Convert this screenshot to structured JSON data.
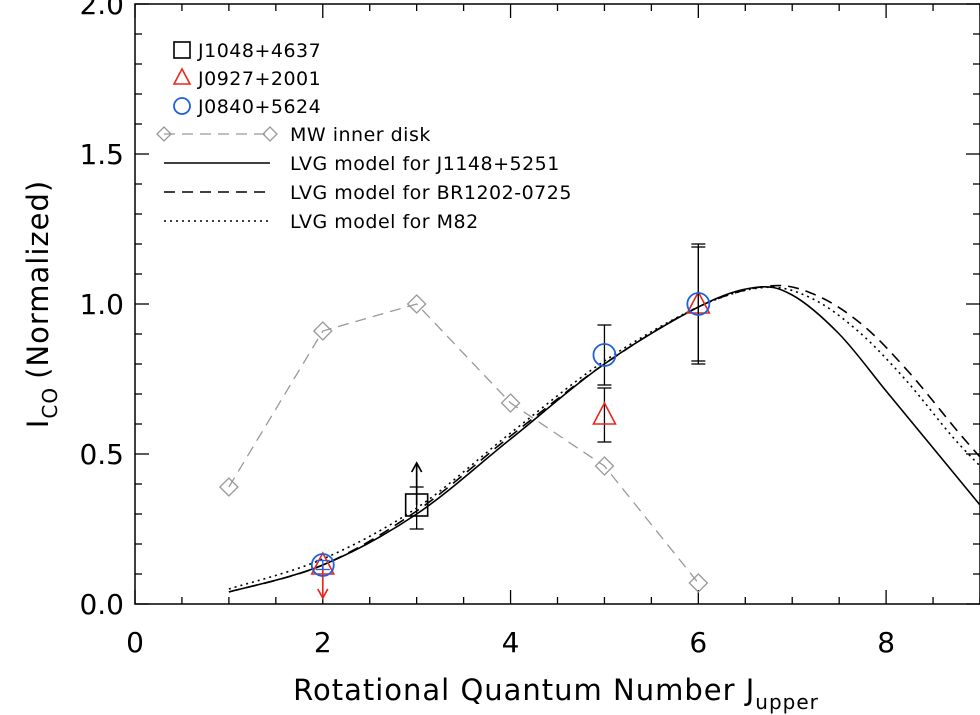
{
  "chart_data": {
    "type": "scatter",
    "title": "",
    "xlabel": "Rotational Quantum Number J",
    "xlabel_subscript": "upper",
    "ylabel": "I",
    "ylabel_subscript": "CO",
    "ylabel_suffix": "(Normalized)",
    "xlim": [
      0,
      9
    ],
    "ylim": [
      0,
      2.0
    ],
    "x_ticks": [
      0,
      2,
      4,
      6,
      8
    ],
    "y_ticks": [
      "0.0",
      "0.5",
      "1.0",
      "1.5",
      "2.0"
    ],
    "x_minor_step": 0.5,
    "y_minor_step": 0.1,
    "grid": false,
    "legend_position": "top-left",
    "series": [
      {
        "name": "J1048+4637",
        "marker": "square",
        "color": "#000000",
        "points": [
          {
            "x": 3,
            "y": 0.33,
            "err_lo": 0.08,
            "err_hi": 0.06,
            "lower_limit": true
          }
        ]
      },
      {
        "name": "J0927+2001",
        "marker": "triangle",
        "color": "#e8281c",
        "points": [
          {
            "x": 2,
            "y": 0.13,
            "upper_limit": true
          },
          {
            "x": 5,
            "y": 0.63,
            "err_lo": 0.09,
            "err_hi": 0.09
          },
          {
            "x": 6,
            "y": 1.0,
            "err_lo": 0.2,
            "err_hi": 0.2
          }
        ]
      },
      {
        "name": "J0840+5624",
        "marker": "circle",
        "color": "#1f5fe0",
        "points": [
          {
            "x": 2,
            "y": 0.13,
            "err_lo": 0.015,
            "err_hi": 0.015
          },
          {
            "x": 5,
            "y": 0.83,
            "err_lo": 0.1,
            "err_hi": 0.1
          },
          {
            "x": 6,
            "y": 1.0,
            "err_lo": 0.19,
            "err_hi": 0.19
          }
        ]
      },
      {
        "name": "MW inner disk",
        "marker": "diamond",
        "line": "dashed",
        "color": "#999999",
        "x": [
          1,
          2,
          3,
          4,
          5,
          6
        ],
        "y": [
          0.39,
          0.91,
          1.0,
          0.67,
          0.46,
          0.07
        ]
      },
      {
        "name": "LVG model for J1148+5251",
        "line": "solid",
        "color": "#000000",
        "x": [
          1,
          2,
          3,
          4,
          5,
          6,
          6.6,
          7,
          7.5,
          8,
          8.5,
          9
        ],
        "y": [
          0.04,
          0.13,
          0.3,
          0.55,
          0.8,
          0.99,
          1.055,
          1.03,
          0.9,
          0.71,
          0.52,
          0.33
        ]
      },
      {
        "name": "LVG model for BR1202-0725",
        "line": "dashed",
        "color": "#000000",
        "x": [
          1,
          2,
          3,
          4,
          5,
          6,
          6.75,
          7.25,
          7.75,
          8.25,
          8.75,
          9
        ],
        "y": [
          0.04,
          0.13,
          0.31,
          0.56,
          0.8,
          0.99,
          1.06,
          1.03,
          0.93,
          0.77,
          0.58,
          0.49
        ]
      },
      {
        "name": "LVG model for M82",
        "line": "dotted",
        "color": "#000000",
        "x": [
          1,
          2,
          3,
          4,
          5,
          6,
          6.7,
          7.2,
          7.7,
          8.2,
          8.7,
          9
        ],
        "y": [
          0.05,
          0.15,
          0.32,
          0.57,
          0.81,
          0.99,
          1.055,
          1.02,
          0.91,
          0.75,
          0.56,
          0.46
        ]
      }
    ]
  }
}
